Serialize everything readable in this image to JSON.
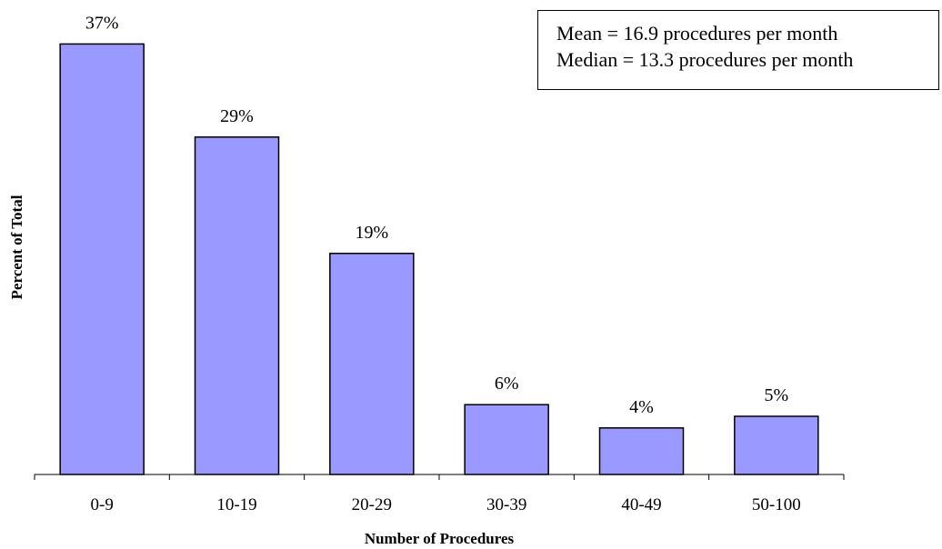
{
  "chart_data": {
    "type": "bar",
    "categories": [
      "0-9",
      "10-19",
      "20-29",
      "30-39",
      "40-49",
      "50-100"
    ],
    "values": [
      37,
      29,
      19,
      6,
      4,
      5
    ],
    "value_labels": [
      "37%",
      "29%",
      "19%",
      "6%",
      "4%",
      "5%"
    ],
    "xlabel": "Number of Procedures",
    "ylabel": "Percent of Total",
    "ylim": [
      0,
      40
    ],
    "grid": false,
    "bar_color": "#9999ff",
    "annotations": [
      "Mean = 16.9 procedures per month",
      "Median = 13.3 procedures per month"
    ]
  }
}
